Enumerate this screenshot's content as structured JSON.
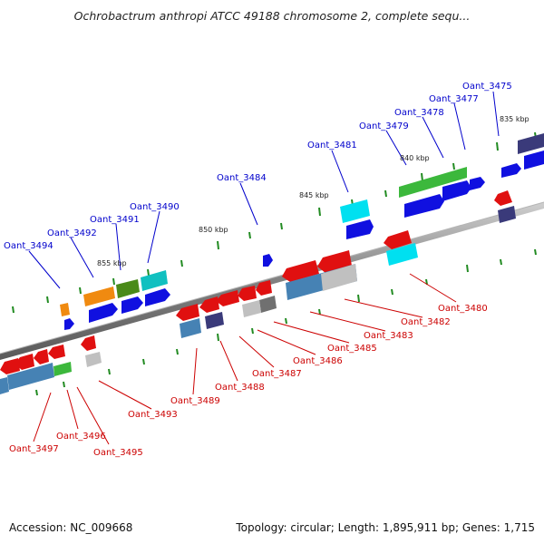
{
  "title": "Ochrobactrum anthropi ATCC 49188 chromosome 2, complete sequ...",
  "footer": {
    "accession": "Accession: NC_009668",
    "summary": "Topology: circular; Length: 1,895,911 bp; Genes: 1,715"
  },
  "kbp_labels": [
    "835 kbp",
    "840 kbp",
    "845 kbp",
    "850 kbp",
    "855 kbp"
  ],
  "forward_labels": [
    "Oant_3475",
    "Oant_3477",
    "Oant_3478",
    "Oant_3479",
    "Oant_3481",
    "Oant_3484",
    "Oant_3490",
    "Oant_3491",
    "Oant_3492",
    "Oant_3494"
  ],
  "reverse_labels": [
    "Oant_3480",
    "Oant_3482",
    "Oant_3483",
    "Oant_3485",
    "Oant_3486",
    "Oant_3487",
    "Oant_3488",
    "Oant_3489",
    "Oant_3493",
    "Oant_3495",
    "Oant_3496",
    "Oant_3497"
  ],
  "colors": {
    "forward_cds": "#1010e0",
    "reverse_cds": "#e01010",
    "forward_label": "#0000cc",
    "reverse_label": "#cc0000",
    "backbone": "#808080",
    "tick": "#228b22"
  }
}
